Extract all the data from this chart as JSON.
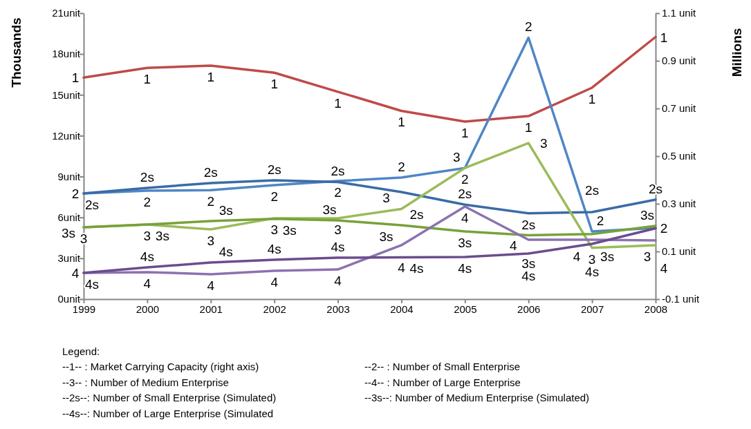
{
  "chart_data": {
    "type": "line",
    "ylabel": "Thousands",
    "y2label": "Millions",
    "x": [
      1999,
      2000,
      2001,
      2002,
      2003,
      2004,
      2005,
      2006,
      2007,
      2008
    ],
    "xlim": [
      1999,
      2008
    ],
    "xticks": [
      1999,
      2000,
      2001,
      2002,
      2003,
      2004,
      2005,
      2006,
      2007,
      2008
    ],
    "ylim": [
      0,
      21
    ],
    "yticks": [
      {
        "value": 0,
        "label": "0unit"
      },
      {
        "value": 3,
        "label": "3unit"
      },
      {
        "value": 6,
        "label": "6unit"
      },
      {
        "value": 9,
        "label": "9unit"
      },
      {
        "value": 12,
        "label": "12unit"
      },
      {
        "value": 15,
        "label": "15unit"
      },
      {
        "value": 18,
        "label": "18unit"
      },
      {
        "value": 21,
        "label": "21unit"
      }
    ],
    "y2lim": [
      -0.1,
      1.1
    ],
    "y2ticks": [
      {
        "value": -0.1,
        "label": "-0.1  unit"
      },
      {
        "value": 0.1,
        "label": "0.1  unit"
      },
      {
        "value": 0.3,
        "label": "0.3  unit"
      },
      {
        "value": 0.5,
        "label": "0.5  unit"
      },
      {
        "value": 0.7,
        "label": "0.7  unit"
      },
      {
        "value": 0.9,
        "label": "0.9  unit"
      },
      {
        "value": 1.1,
        "label": "1.1  unit"
      }
    ],
    "grid": false,
    "legend": false,
    "marker": "none",
    "line_style": "solid",
    "series": [
      {
        "name": "1",
        "color": "#be4b48",
        "axis": "y2",
        "values": [
          0.83,
          0.87,
          0.88,
          0.85,
          0.77,
          0.69,
          0.645,
          0.668,
          0.787,
          1.0
        ]
      },
      {
        "name": "2",
        "color": "#4f86c6",
        "values": [
          7.76,
          7.96,
          8.0,
          8.37,
          8.67,
          8.93,
          9.63,
          19.2,
          4.97,
          5.23
        ]
      },
      {
        "name": "2s",
        "color": "#3a6ba6",
        "values": [
          7.76,
          8.17,
          8.52,
          8.72,
          8.6,
          7.86,
          6.94,
          6.3,
          6.39,
          7.3
        ]
      },
      {
        "name": "3",
        "color": "#9bbb59",
        "values": [
          5.28,
          5.48,
          5.12,
          5.94,
          5.94,
          6.62,
          9.63,
          11.46,
          3.77,
          3.96
        ]
      },
      {
        "name": "3s",
        "color": "#77a23a",
        "values": [
          5.28,
          5.48,
          5.73,
          5.9,
          5.78,
          5.43,
          4.97,
          4.69,
          4.78,
          5.38
        ]
      },
      {
        "name": "4",
        "color": "#8c72b0",
        "values": [
          1.93,
          1.98,
          1.83,
          2.08,
          2.18,
          3.96,
          6.8,
          4.36,
          4.36,
          4.31
        ]
      },
      {
        "name": "4s",
        "color": "#6b4c8f",
        "values": [
          1.93,
          2.33,
          2.69,
          2.89,
          3.04,
          3.07,
          3.09,
          3.35,
          4.06,
          5.2
        ]
      }
    ],
    "annotations": [
      "Legend:",
      "--1-- : Market Carrying Capacity (right axis)",
      "--2-- : Number of Small Enterprise",
      "--3-- : Number of Medium Enterprise",
      "--4-- : Number of Large Enterprise",
      "--2s--: Number of Small Enterprise (Simulated)",
      "--3s--: Number of Medium Enterprise (Simulated)",
      "--4s--: Number of Large Enterprise (Simulated"
    ]
  }
}
